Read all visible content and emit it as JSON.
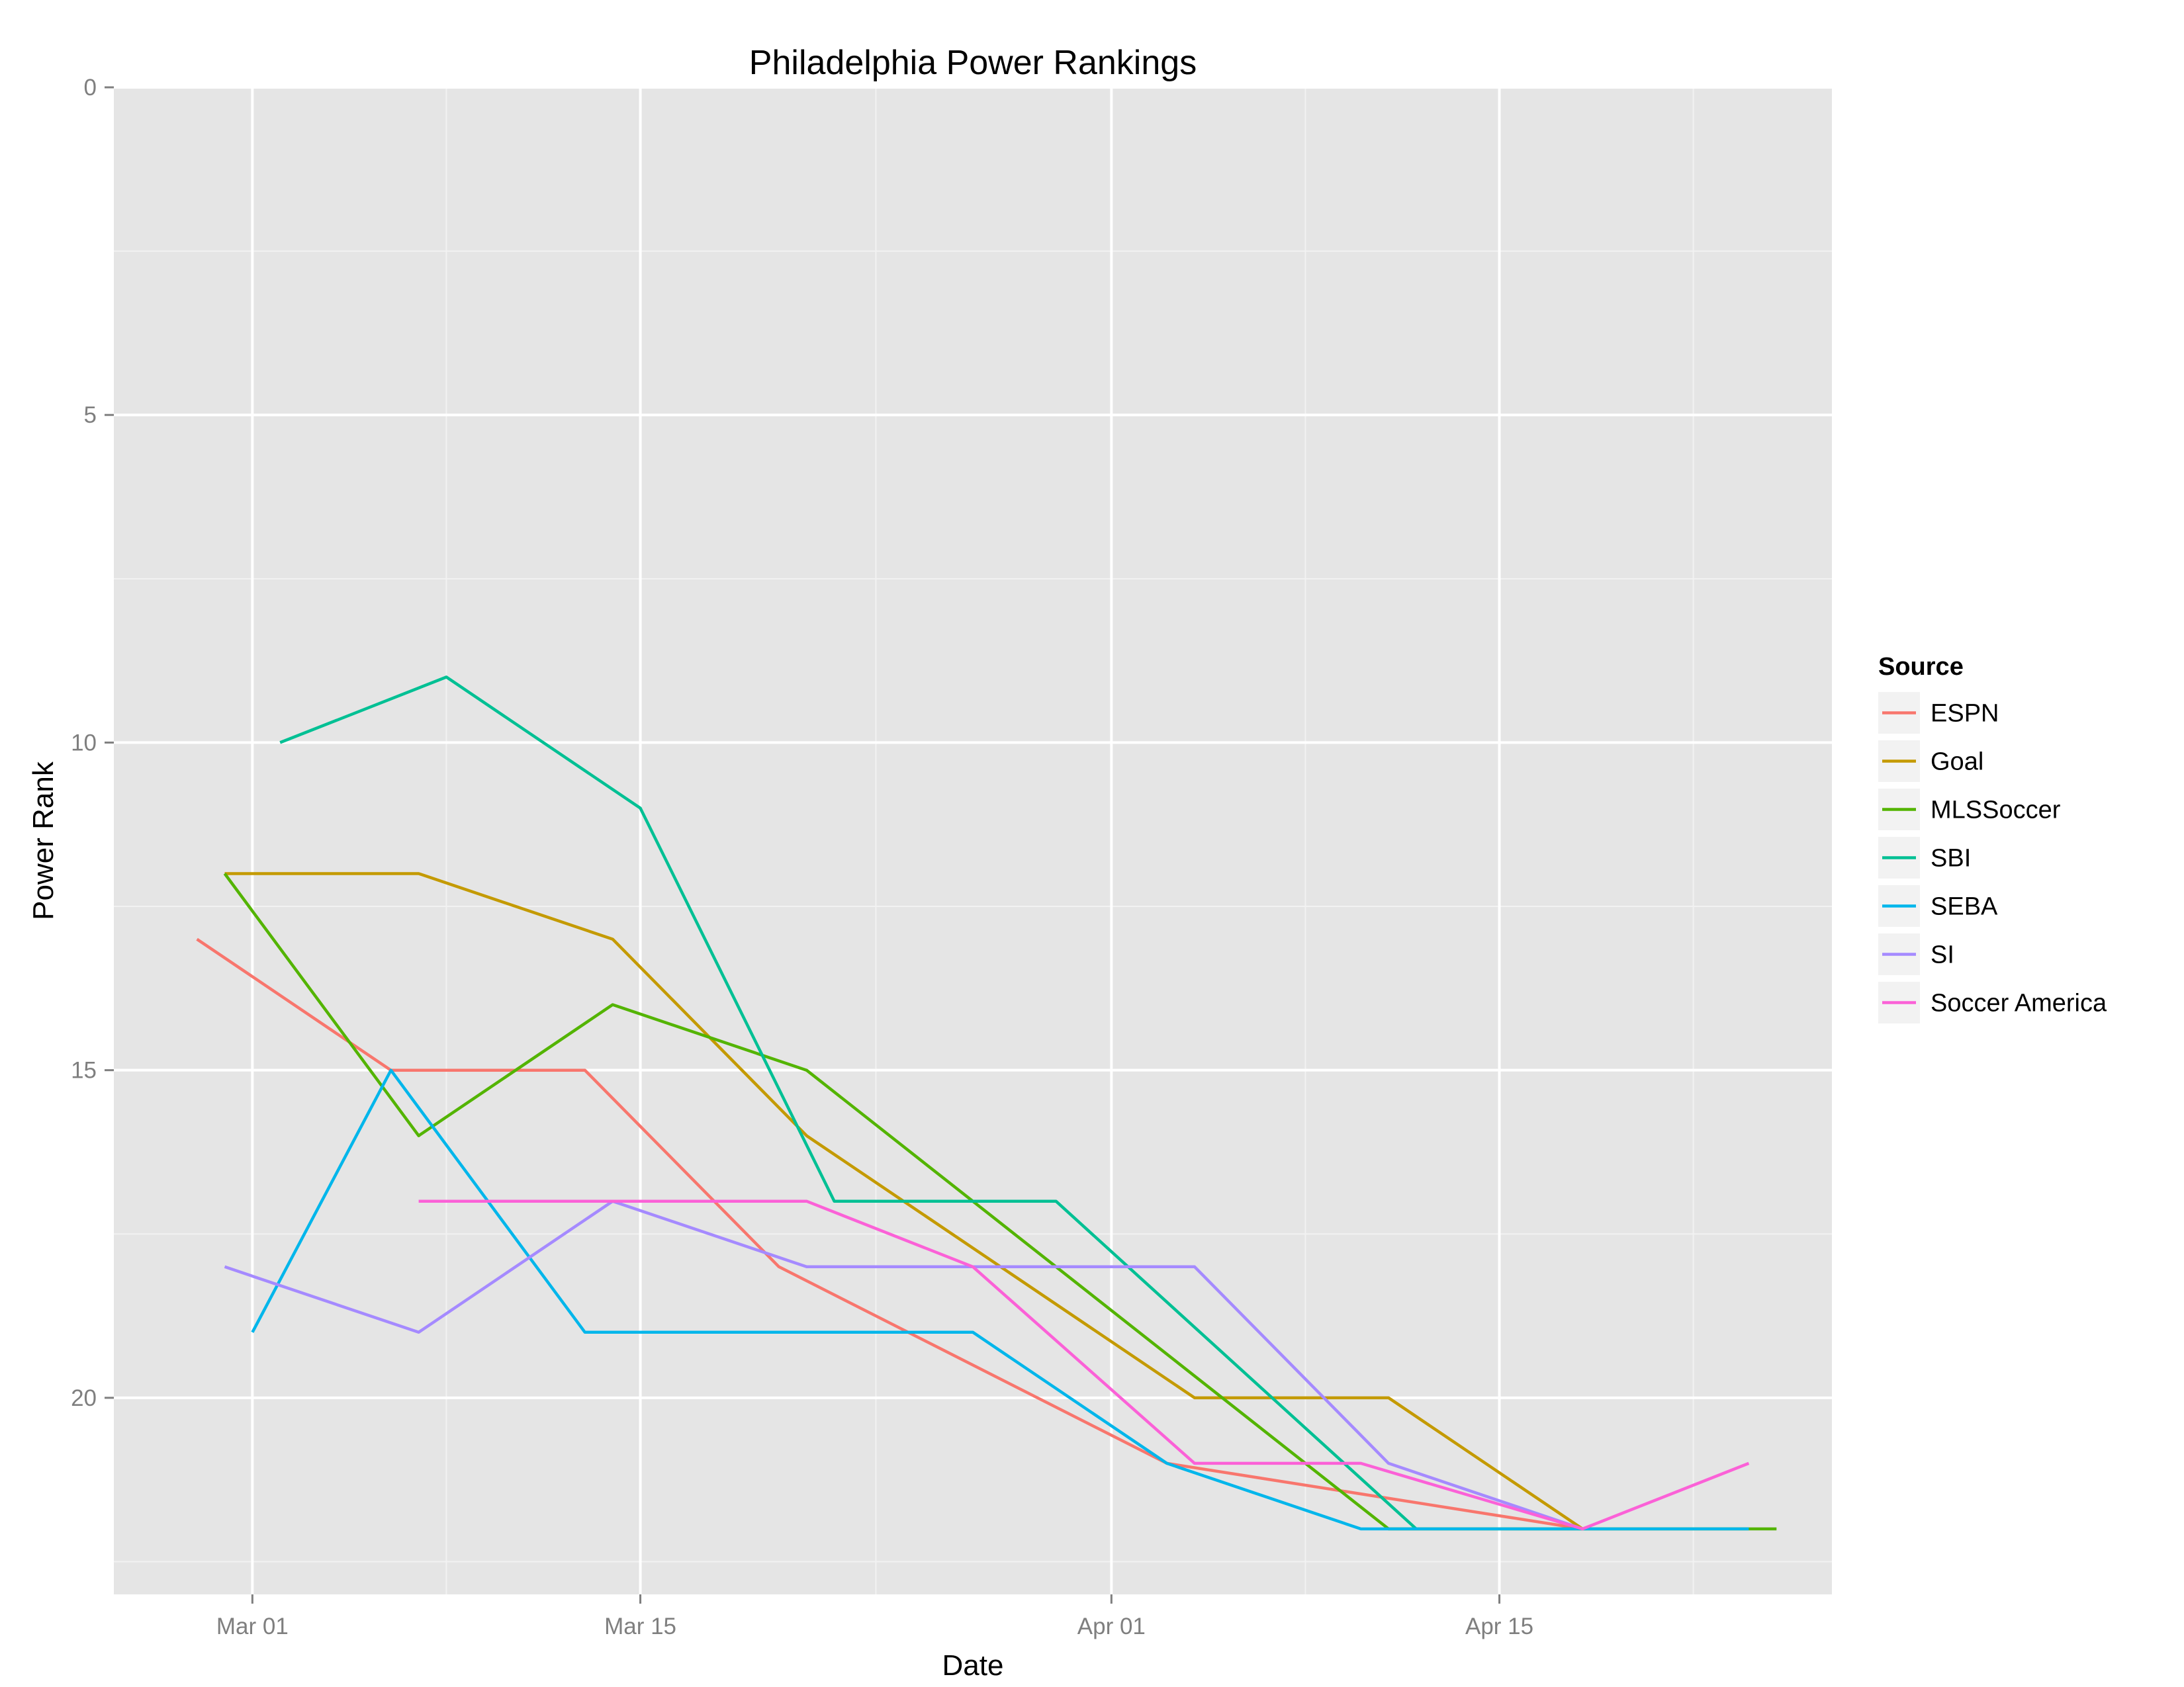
{
  "chart_data": {
    "type": "line",
    "title": "Philadelphia Power Rankings",
    "xlabel": "Date",
    "ylabel": "Power Rank",
    "y_reversed": true,
    "ylim": [
      0,
      23
    ],
    "yticks": [
      0,
      5,
      10,
      15,
      20
    ],
    "xlim": [
      "2015-02-24",
      "2015-04-27"
    ],
    "xticks": [
      {
        "date": "2015-03-01",
        "label": "Mar 01"
      },
      {
        "date": "2015-03-15",
        "label": "Mar 15"
      },
      {
        "date": "2015-04-01",
        "label": "Apr 01"
      },
      {
        "date": "2015-04-15",
        "label": "Apr 15"
      }
    ],
    "grid": true,
    "legend": {
      "title": "Source",
      "position": "right"
    },
    "series": [
      {
        "name": "ESPN",
        "color": "#F8766D",
        "points": [
          [
            "2015-02-27",
            13
          ],
          [
            "2015-03-06",
            15
          ],
          [
            "2015-03-13",
            15
          ],
          [
            "2015-03-20",
            18
          ],
          [
            "2015-04-03",
            21
          ],
          [
            "2015-04-18",
            22
          ]
        ]
      },
      {
        "name": "Goal",
        "color": "#C49A00",
        "points": [
          [
            "2015-02-28",
            12
          ],
          [
            "2015-03-07",
            12
          ],
          [
            "2015-03-14",
            13
          ],
          [
            "2015-03-21",
            16
          ],
          [
            "2015-04-04",
            20
          ],
          [
            "2015-04-11",
            20
          ],
          [
            "2015-04-18",
            22
          ]
        ]
      },
      {
        "name": "MLSSoccer",
        "color": "#53B400",
        "points": [
          [
            "2015-02-28",
            12
          ],
          [
            "2015-03-07",
            16
          ],
          [
            "2015-03-14",
            14
          ],
          [
            "2015-03-21",
            15
          ],
          [
            "2015-04-11",
            22
          ],
          [
            "2015-04-25",
            22
          ]
        ]
      },
      {
        "name": "SBI",
        "color": "#00C094",
        "points": [
          [
            "2015-03-02",
            10
          ],
          [
            "2015-03-08",
            9
          ],
          [
            "2015-03-15",
            11
          ],
          [
            "2015-03-22",
            17
          ],
          [
            "2015-03-30",
            17
          ],
          [
            "2015-04-12",
            22
          ]
        ]
      },
      {
        "name": "SEBA",
        "color": "#00B6EB",
        "points": [
          [
            "2015-03-01",
            19
          ],
          [
            "2015-03-06",
            15
          ],
          [
            "2015-03-13",
            19
          ],
          [
            "2015-03-27",
            19
          ],
          [
            "2015-04-03",
            21
          ],
          [
            "2015-04-10",
            22
          ],
          [
            "2015-04-24",
            22
          ]
        ]
      },
      {
        "name": "SI",
        "color": "#A58AFF",
        "points": [
          [
            "2015-02-28",
            18
          ],
          [
            "2015-03-07",
            19
          ],
          [
            "2015-03-14",
            17
          ],
          [
            "2015-03-21",
            18
          ],
          [
            "2015-04-04",
            18
          ],
          [
            "2015-04-11",
            21
          ],
          [
            "2015-04-18",
            22
          ]
        ]
      },
      {
        "name": "Soccer America",
        "color": "#FB61D7",
        "points": [
          [
            "2015-03-07",
            17
          ],
          [
            "2015-03-21",
            17
          ],
          [
            "2015-03-27",
            18
          ],
          [
            "2015-04-04",
            21
          ],
          [
            "2015-04-10",
            21
          ],
          [
            "2015-04-18",
            22
          ],
          [
            "2015-04-24",
            21
          ]
        ]
      }
    ]
  }
}
